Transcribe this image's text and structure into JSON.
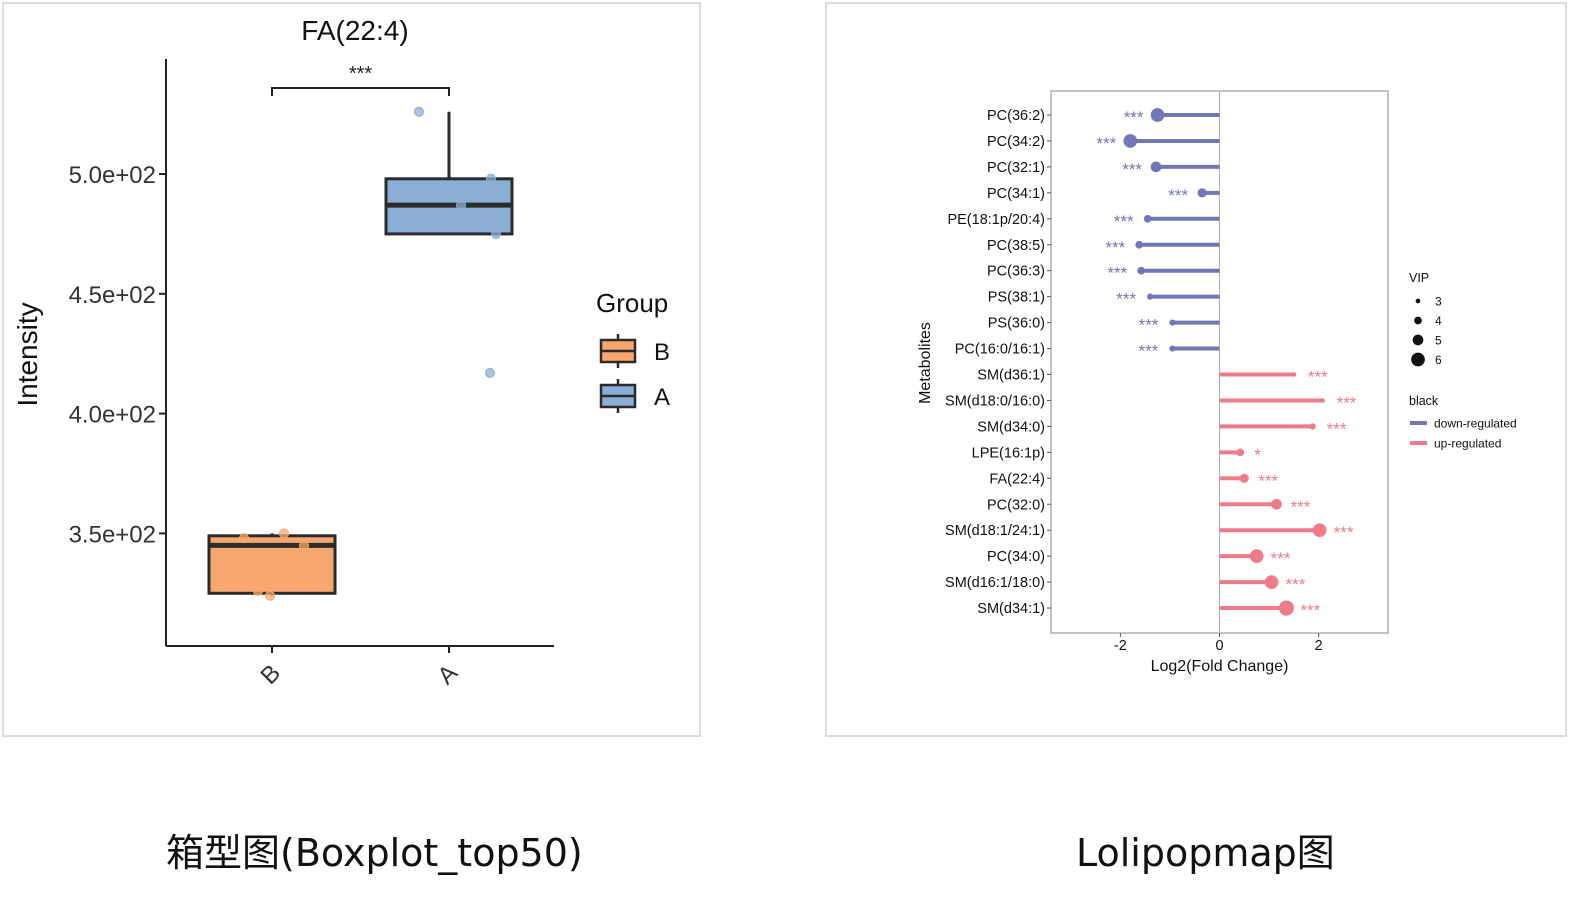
{
  "captions": {
    "left": "箱型图(Boxplot_top50)",
    "right": "Lolipopmap图"
  },
  "chart_data": [
    {
      "type": "box",
      "title": "FA(22:4)",
      "xlabel": "",
      "ylabel": "Intensity",
      "categories": [
        "B",
        "A"
      ],
      "y_ticks": [
        350,
        400,
        450,
        500
      ],
      "y_tick_labels": [
        "3.5e+02",
        "4.0e+02",
        "4.5e+02",
        "5.0e+02"
      ],
      "ylim": [
        303,
        548
      ],
      "boxes": [
        {
          "name": "B",
          "min": 324,
          "q1": 325,
          "median": 345,
          "q3": 349,
          "max": 350,
          "color": "#F8A86F"
        },
        {
          "name": "A",
          "min": 475,
          "q1": 475,
          "median": 487,
          "q3": 498,
          "max": 526,
          "color": "#8BAED6"
        }
      ],
      "points": [
        {
          "group": "B",
          "y": [
            348,
            350,
            345,
            326,
            324
          ]
        },
        {
          "group": "A",
          "y": [
            526,
            498,
            487,
            475,
            417
          ]
        }
      ],
      "significance": {
        "pair": [
          "B",
          "A"
        ],
        "label": "***"
      },
      "legend": {
        "title": "Group",
        "position": "right",
        "entries": [
          "B",
          "A"
        ]
      },
      "grid": false
    },
    {
      "type": "lollipop",
      "title": "",
      "xlabel": "Log2(Fold Change)",
      "ylabel": "Metabolites",
      "xlim": [
        -3.4,
        3.4
      ],
      "x_ticks": [
        -2,
        0,
        2
      ],
      "x_tick_labels": [
        "-2",
        "0",
        "2"
      ],
      "colors": {
        "down-regulated": "#7077B4",
        "up-regulated": "#EE7B8A"
      },
      "metabolites": [
        {
          "name": "PC(36:2)",
          "log2fc": -1.25,
          "vip": 6,
          "regulation": "down-regulated",
          "sig": "***"
        },
        {
          "name": "PC(34:2)",
          "log2fc": -1.8,
          "vip": 6,
          "regulation": "down-regulated",
          "sig": "***"
        },
        {
          "name": "PC(32:1)",
          "log2fc": -1.28,
          "vip": 5,
          "regulation": "down-regulated",
          "sig": "***"
        },
        {
          "name": "PC(34:1)",
          "log2fc": -0.35,
          "vip": 4.5,
          "regulation": "down-regulated",
          "sig": "***"
        },
        {
          "name": "PE(18:1p/20:4)",
          "log2fc": -1.45,
          "vip": 4,
          "regulation": "down-regulated",
          "sig": "***"
        },
        {
          "name": "PC(38:5)",
          "log2fc": -1.62,
          "vip": 4,
          "regulation": "down-regulated",
          "sig": "***"
        },
        {
          "name": "PC(36:3)",
          "log2fc": -1.58,
          "vip": 4,
          "regulation": "down-regulated",
          "sig": "***"
        },
        {
          "name": "PS(38:1)",
          "log2fc": -1.4,
          "vip": 3.5,
          "regulation": "down-regulated",
          "sig": "***"
        },
        {
          "name": "PS(36:0)",
          "log2fc": -0.95,
          "vip": 3.5,
          "regulation": "down-regulated",
          "sig": "***"
        },
        {
          "name": "PC(16:0/16:1)",
          "log2fc": -0.95,
          "vip": 3.5,
          "regulation": "down-regulated",
          "sig": "***"
        },
        {
          "name": "SM(d36:1)",
          "log2fc": 1.5,
          "vip": 3,
          "regulation": "up-regulated",
          "sig": "***"
        },
        {
          "name": "SM(d18:0/16:0)",
          "log2fc": 2.08,
          "vip": 3,
          "regulation": "up-regulated",
          "sig": "***"
        },
        {
          "name": "SM(d34:0)",
          "log2fc": 1.88,
          "vip": 3.5,
          "regulation": "up-regulated",
          "sig": "***"
        },
        {
          "name": "LPE(16:1p)",
          "log2fc": 0.42,
          "vip": 4,
          "regulation": "up-regulated",
          "sig": "*"
        },
        {
          "name": "FA(22:4)",
          "log2fc": 0.5,
          "vip": 4.5,
          "regulation": "up-regulated",
          "sig": "***"
        },
        {
          "name": "PC(32:0)",
          "log2fc": 1.15,
          "vip": 5,
          "regulation": "up-regulated",
          "sig": "***"
        },
        {
          "name": "SM(d18:1/24:1)",
          "log2fc": 2.02,
          "vip": 6,
          "regulation": "up-regulated",
          "sig": "***"
        },
        {
          "name": "PC(34:0)",
          "log2fc": 0.75,
          "vip": 6,
          "regulation": "up-regulated",
          "sig": "***"
        },
        {
          "name": "SM(d16:1/18:0)",
          "log2fc": 1.05,
          "vip": 6,
          "regulation": "up-regulated",
          "sig": "***"
        },
        {
          "name": "SM(d34:1)",
          "log2fc": 1.35,
          "vip": 6.5,
          "regulation": "up-regulated",
          "sig": "***"
        }
      ],
      "legend_vip": {
        "title": "VIP",
        "values": [
          3,
          4,
          5,
          6
        ],
        "labels": [
          "3",
          "4",
          "5",
          "6"
        ]
      },
      "legend_color": {
        "title": "black",
        "entries": [
          "down-regulated",
          "up-regulated"
        ]
      },
      "grid": false
    }
  ]
}
